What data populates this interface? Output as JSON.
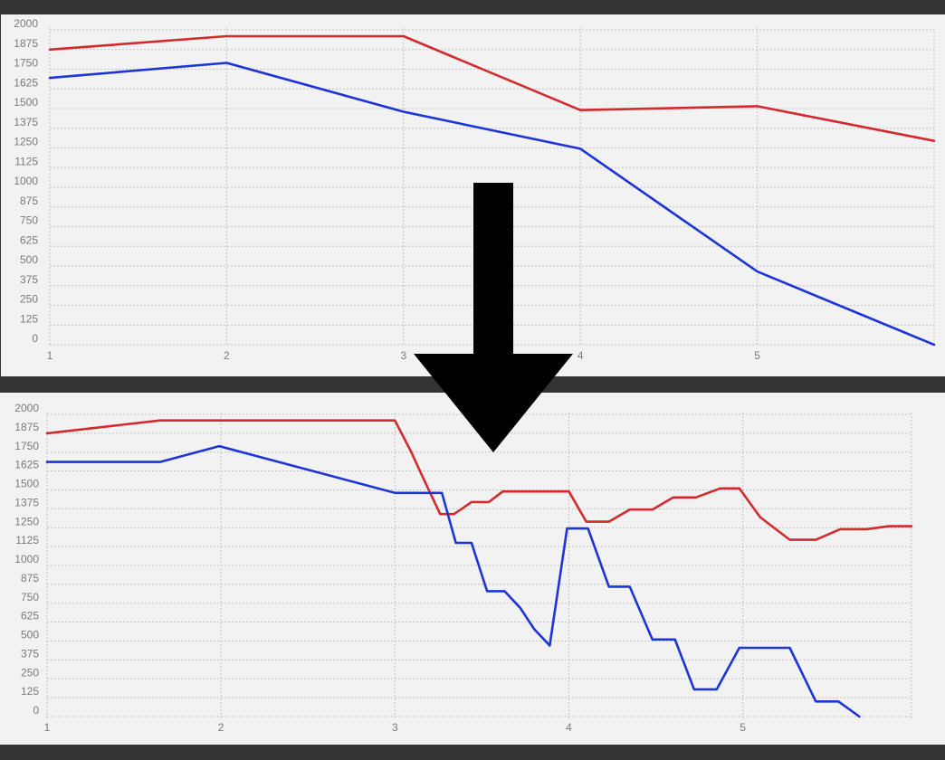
{
  "colors": {
    "background": "#333333",
    "panel": "#f2f2f2",
    "grid": "#c4c4c4",
    "tick_text": "#7a7a7a",
    "series_red": "#d42a2e",
    "series_blue": "#1d35d8",
    "arrow": "#000000"
  },
  "arrow_icon": "down-arrow-icon",
  "chart_data": [
    {
      "type": "line",
      "title": "",
      "xlabel": "",
      "ylabel": "",
      "xlim": [
        1,
        6
      ],
      "ylim": [
        0,
        2000
      ],
      "x_ticks": [
        "1",
        "2",
        "3",
        "4",
        "5"
      ],
      "y_ticks": [
        "0",
        "125",
        "250",
        "375",
        "500",
        "625",
        "750",
        "875",
        "1000",
        "1125",
        "1250",
        "1375",
        "1500",
        "1625",
        "1750",
        "1875",
        "2000"
      ],
      "grid": true,
      "legend": "none",
      "series": [
        {
          "color": "#d42a2e",
          "x": [
            1,
            2,
            3,
            4,
            5,
            6
          ],
          "y": [
            1875,
            1960,
            1960,
            1490,
            1515,
            1295
          ]
        },
        {
          "color": "#1d35d8",
          "x": [
            1,
            2,
            3,
            4,
            5,
            6
          ],
          "y": [
            1695,
            1790,
            1480,
            1245,
            465,
            0
          ]
        }
      ]
    },
    {
      "type": "line",
      "title": "",
      "xlabel": "",
      "ylabel": "",
      "xlim": [
        1,
        5.97
      ],
      "ylim": [
        0,
        2000
      ],
      "x_ticks": [
        "1",
        "2",
        "3",
        "4",
        "5"
      ],
      "y_ticks": [
        "0",
        "125",
        "250",
        "375",
        "500",
        "625",
        "750",
        "875",
        "1000",
        "1125",
        "1250",
        "1375",
        "1500",
        "1625",
        "1750",
        "1875",
        "2000"
      ],
      "grid": true,
      "legend": "none",
      "series": [
        {
          "color": "#d42a2e",
          "x": [
            1,
            1.65,
            2,
            3,
            3.09,
            3.17,
            3.26,
            3.34,
            3.44,
            3.54,
            3.62,
            3.74,
            3.87,
            4.0,
            4.1,
            4.23,
            4.35,
            4.48,
            4.6,
            4.73,
            4.87,
            4.98,
            5.1,
            5.27,
            5.42,
            5.56,
            5.71,
            5.84,
            5.97
          ],
          "y": [
            1875,
            1960,
            1960,
            1960,
            1760,
            1560,
            1340,
            1340,
            1420,
            1420,
            1490,
            1490,
            1490,
            1490,
            1290,
            1290,
            1370,
            1370,
            1450,
            1450,
            1510,
            1510,
            1320,
            1170,
            1170,
            1240,
            1240,
            1260,
            1260
          ]
        },
        {
          "color": "#1d35d8",
          "x": [
            1,
            1.65,
            1.99,
            3,
            3.12,
            3.27,
            3.35,
            3.44,
            3.53,
            3.63,
            3.72,
            3.8,
            3.89,
            3.99,
            4.11,
            4.23,
            4.35,
            4.48,
            4.61,
            4.72,
            4.85,
            4.98,
            5.13,
            5.27,
            5.42,
            5.55,
            5.67
          ],
          "y": [
            1685,
            1685,
            1790,
            1480,
            1480,
            1480,
            1150,
            1150,
            830,
            830,
            720,
            580,
            470,
            1245,
            1245,
            860,
            860,
            510,
            510,
            180,
            180,
            455,
            455,
            455,
            100,
            100,
            0
          ]
        }
      ]
    }
  ]
}
